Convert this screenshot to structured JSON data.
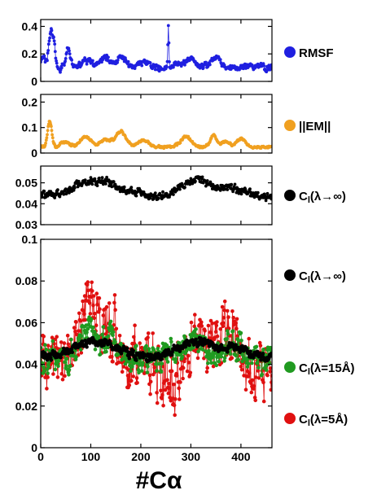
{
  "figure": {
    "xlabel": "#Cα"
  },
  "chart_data": [
    {
      "type": "line",
      "xlim": [
        0,
        462
      ],
      "ylim": [
        0,
        0.45
      ],
      "yticks": [
        0,
        0.2,
        0.4
      ],
      "xticks": [
        0,
        100,
        200,
        300,
        400
      ],
      "show_xtick_labels": false,
      "series": [
        {
          "name": "RMSF",
          "color": "#1f1fe0",
          "base": 0.1,
          "jitter": 0.035,
          "bumps": [
            [
              5,
              0.08,
              4
            ],
            [
              20,
              0.26,
              4
            ],
            [
              27,
              0.12,
              3
            ],
            [
              55,
              0.13,
              4
            ],
            [
              90,
              0.05,
              12
            ],
            [
              130,
              0.07,
              10
            ],
            [
              160,
              0.06,
              10
            ],
            [
              205,
              0.04,
              10
            ],
            [
              255,
              0.3,
              1
            ],
            [
              275,
              0.04,
              8
            ],
            [
              300,
              0.07,
              8
            ],
            [
              350,
              0.06,
              10
            ],
            [
              435,
              0.02,
              10
            ]
          ]
        }
      ]
    },
    {
      "type": "line",
      "xlim": [
        0,
        462
      ],
      "ylim": [
        0,
        0.23
      ],
      "yticks": [
        0,
        0.1,
        0.2
      ],
      "xticks": [
        0,
        100,
        200,
        300,
        400
      ],
      "show_xtick_labels": false,
      "series": [
        {
          "name": "||EM||",
          "color": "#f0a020",
          "base": 0.025,
          "jitter": 0.008,
          "bumps": [
            [
              18,
              0.1,
              4
            ],
            [
              50,
              0.02,
              8
            ],
            [
              90,
              0.04,
              10
            ],
            [
              130,
              0.03,
              10
            ],
            [
              160,
              0.06,
              10
            ],
            [
              205,
              0.025,
              10
            ],
            [
              290,
              0.04,
              10
            ],
            [
              345,
              0.045,
              6
            ],
            [
              370,
              0.02,
              8
            ],
            [
              400,
              0.03,
              8
            ]
          ]
        }
      ]
    },
    {
      "type": "line",
      "xlim": [
        0,
        462
      ],
      "ylim": [
        0.03,
        0.058
      ],
      "yticks": [
        0.03,
        0.04,
        0.05
      ],
      "xticks": [
        0,
        100,
        200,
        300,
        400
      ],
      "show_xtick_labels": false,
      "series": [
        {
          "name": "Cl(λ→∞)",
          "color": "#000000",
          "base": 0.043,
          "jitter": 0.003,
          "bumps": [
            [
              110,
              0.008,
              45
            ],
            [
              310,
              0.008,
              35
            ],
            [
              390,
              0.004,
              25
            ]
          ]
        }
      ]
    },
    {
      "type": "line",
      "xlim": [
        0,
        462
      ],
      "ylim": [
        0,
        0.1
      ],
      "yticks": [
        0,
        0.02,
        0.04,
        0.06,
        0.08,
        0.1
      ],
      "xticks": [
        0,
        100,
        200,
        300,
        400
      ],
      "show_xtick_labels": true,
      "series": [
        {
          "name": "Cl(λ=5Å)",
          "color": "#e01010",
          "base": 0.041,
          "jitter": 0.022,
          "bumps": [
            [
              95,
              0.03,
              15
            ],
            [
              140,
              0.015,
              12
            ],
            [
              260,
              -0.01,
              20
            ],
            [
              310,
              0.015,
              15
            ],
            [
              380,
              0.015,
              15
            ]
          ]
        },
        {
          "name": "Cl(λ=15Å)",
          "color": "#209a20",
          "base": 0.043,
          "jitter": 0.01,
          "bumps": [
            [
              95,
              0.015,
              18
            ],
            [
              140,
              0.008,
              15
            ],
            [
              310,
              0.01,
              18
            ],
            [
              380,
              0.008,
              15
            ]
          ]
        },
        {
          "name": "Cl(λ→∞)",
          "color": "#000000",
          "base": 0.043,
          "jitter": 0.003,
          "bumps": [
            [
              110,
              0.008,
              45
            ],
            [
              310,
              0.008,
              35
            ],
            [
              390,
              0.004,
              25
            ]
          ]
        }
      ]
    }
  ]
}
